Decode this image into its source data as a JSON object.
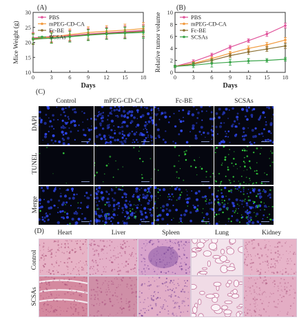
{
  "panel_labels": {
    "a": "(A)",
    "b": "(B)",
    "c": "(C)",
    "d": "(D)"
  },
  "chart_data": [
    {
      "type": "line",
      "ylabel": "Mice Weight (g)",
      "xlabel": "Days",
      "x": [
        0,
        3,
        6,
        9,
        12,
        15,
        18
      ],
      "xlim": [
        0,
        18
      ],
      "ylim": [
        10,
        30
      ],
      "yticks": [
        10,
        15,
        20,
        25,
        30
      ],
      "legend_position": "top-left",
      "series": [
        {
          "name": "PBS",
          "color": "#e0529a",
          "values": [
            21.5,
            22.0,
            22.3,
            22.8,
            23.2,
            23.6,
            24.0
          ],
          "err": [
            1.8,
            1.8,
            1.8,
            1.9,
            1.9,
            2.0,
            2.0
          ]
        },
        {
          "name": "mPEG-CD-CA",
          "color": "#f29a3d",
          "values": [
            21.3,
            21.8,
            22.6,
            23.3,
            23.7,
            24.1,
            24.6
          ],
          "err": [
            1.8,
            1.8,
            1.9,
            1.9,
            1.9,
            2.0,
            2.0
          ]
        },
        {
          "name": "Fc-BE",
          "color": "#8a6d2f",
          "values": [
            21.0,
            21.5,
            22.0,
            22.6,
            23.0,
            23.3,
            23.7
          ],
          "err": [
            1.7,
            1.7,
            1.8,
            1.8,
            1.9,
            1.9,
            1.9
          ]
        },
        {
          "name": "SCSAs",
          "color": "#3aa54a",
          "values": [
            21.2,
            21.4,
            21.9,
            22.4,
            22.8,
            23.1,
            23.3
          ],
          "err": [
            1.7,
            1.7,
            1.8,
            1.8,
            1.8,
            1.9,
            1.9
          ]
        }
      ]
    },
    {
      "type": "line",
      "ylabel": "Relative tumor volume",
      "xlabel": "Days",
      "x": [
        0,
        3,
        6,
        9,
        12,
        15,
        18
      ],
      "xlim": [
        0,
        18
      ],
      "ylim": [
        0,
        10
      ],
      "yticks": [
        0,
        2,
        4,
        6,
        8,
        10
      ],
      "legend_position": "top-left",
      "series": [
        {
          "name": "PBS",
          "color": "#e0529a",
          "values": [
            1.0,
            1.8,
            2.9,
            4.2,
            5.3,
            6.4,
            7.8
          ],
          "err": [
            0.2,
            0.3,
            0.3,
            0.3,
            0.3,
            0.4,
            0.4
          ]
        },
        {
          "name": "mPEG-CD-CA",
          "color": "#f29a3d",
          "values": [
            1.0,
            1.5,
            2.3,
            3.2,
            4.0,
            4.6,
            5.4
          ],
          "err": [
            0.2,
            0.3,
            0.3,
            0.3,
            0.4,
            0.4,
            0.4
          ]
        },
        {
          "name": "Fc-BE",
          "color": "#8a6d2f",
          "values": [
            1.0,
            1.4,
            2.0,
            2.8,
            3.4,
            3.9,
            4.4
          ],
          "err": [
            0.2,
            0.3,
            0.3,
            0.3,
            0.4,
            0.4,
            0.4
          ]
        },
        {
          "name": "SCSAs",
          "color": "#3aa54a",
          "values": [
            1.0,
            1.2,
            1.5,
            1.7,
            1.9,
            2.0,
            2.2
          ],
          "err": [
            0.2,
            0.4,
            0.6,
            0.5,
            0.4,
            0.3,
            0.3
          ]
        }
      ]
    }
  ],
  "panel_c": {
    "columns": [
      "Control",
      "mPEG-CD-CA",
      "Fc-BE",
      "SCSAs"
    ],
    "rows": [
      "DAPI",
      "TUNEL",
      "Merge"
    ]
  },
  "panel_d": {
    "columns": [
      "Heart",
      "Liver",
      "Spleen",
      "Lung",
      "Kidney"
    ],
    "rows": [
      "Control",
      "SCSAs"
    ]
  }
}
